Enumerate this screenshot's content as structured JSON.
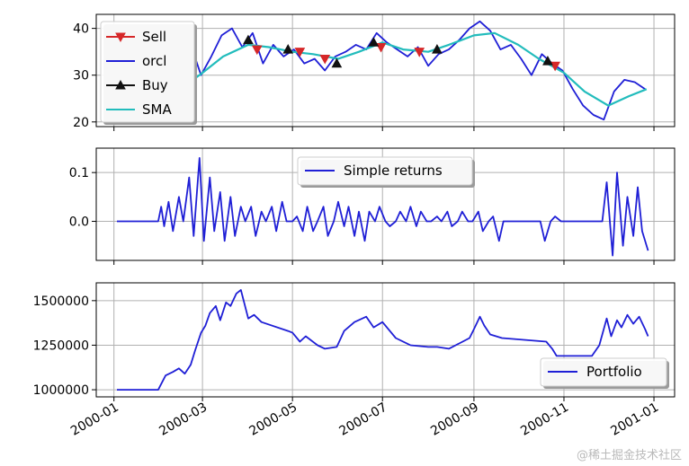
{
  "watermark": "@稀土掘金技术社区",
  "colors": {
    "sell": "#d62728",
    "orcl": "#1f1fd6",
    "buy": "#111111",
    "sma": "#22bcbc",
    "returns": "#1f1fd6",
    "portfolio": "#1f1fd6",
    "grid": "#b0b0b0"
  },
  "x_ticks": [
    "2000-01",
    "2000-03",
    "2000-05",
    "2000-07",
    "2000-09",
    "2000-11",
    "2001-01"
  ],
  "chart_data": [
    {
      "type": "line",
      "title": "",
      "ylim": [
        19,
        43
      ],
      "y_ticks": [
        20,
        30,
        40
      ],
      "grid": true,
      "legend": {
        "placement": "upper-left",
        "entries": [
          "Sell",
          "orcl",
          "Buy",
          "SMA"
        ]
      },
      "series": [
        {
          "name": "orcl",
          "x": [
            "2000-01-31",
            "2000-02-08",
            "2000-02-15",
            "2000-02-22",
            "2000-02-29",
            "2000-03-07",
            "2000-03-14",
            "2000-03-21",
            "2000-03-28",
            "2000-04-04",
            "2000-04-11",
            "2000-04-18",
            "2000-04-25",
            "2000-05-02",
            "2000-05-09",
            "2000-05-16",
            "2000-05-23",
            "2000-05-30",
            "2000-06-06",
            "2000-06-13",
            "2000-06-20",
            "2000-06-27",
            "2000-07-04",
            "2000-07-11",
            "2000-07-18",
            "2000-07-25",
            "2000-08-01",
            "2000-08-08",
            "2000-08-15",
            "2000-08-22",
            "2000-08-29",
            "2000-09-05",
            "2000-09-12",
            "2000-09-19",
            "2000-09-26",
            "2000-10-03",
            "2000-10-10",
            "2000-10-17",
            "2000-10-24",
            "2000-10-31",
            "2000-11-07",
            "2000-11-14",
            "2000-11-21",
            "2000-11-28",
            "2000-12-05",
            "2000-12-12",
            "2000-12-19",
            "2000-12-26"
          ],
          "values": [
            27.5,
            26.5,
            31.5,
            36.5,
            30.0,
            34.0,
            38.5,
            40.0,
            36.0,
            39.0,
            32.5,
            36.5,
            34.0,
            35.5,
            32.5,
            33.5,
            31.0,
            34.0,
            35.0,
            36.5,
            35.5,
            39.0,
            37.0,
            35.5,
            34.0,
            36.0,
            32.0,
            34.5,
            35.5,
            37.5,
            40.0,
            41.5,
            39.5,
            35.5,
            36.5,
            33.5,
            30.0,
            34.5,
            32.5,
            31.0,
            27.0,
            23.5,
            21.5,
            20.5,
            26.5,
            29.0,
            28.5,
            27.0
          ]
        },
        {
          "name": "SMA",
          "x": [
            "2000-02-15",
            "2000-03-01",
            "2000-03-15",
            "2000-04-01",
            "2000-04-15",
            "2000-05-01",
            "2000-05-15",
            "2000-06-01",
            "2000-06-15",
            "2000-07-01",
            "2000-07-15",
            "2000-08-01",
            "2000-08-15",
            "2000-09-01",
            "2000-09-15",
            "2000-10-01",
            "2000-10-15",
            "2000-11-01",
            "2000-11-15",
            "2000-12-01",
            "2000-12-15",
            "2000-12-27"
          ],
          "values": [
            27.0,
            30.5,
            34.0,
            36.5,
            36.0,
            35.0,
            34.5,
            33.5,
            35.0,
            37.0,
            35.5,
            35.0,
            36.5,
            38.5,
            39.0,
            36.5,
            33.5,
            30.5,
            26.5,
            23.5,
            25.5,
            27.0
          ]
        }
      ],
      "markers": {
        "Sell": {
          "x": [
            "2000-04-07",
            "2000-05-06",
            "2000-05-23",
            "2000-06-30",
            "2000-07-26",
            "2000-10-26"
          ],
          "values": [
            35.5,
            35.0,
            33.5,
            36.0,
            35.0,
            32.0
          ]
        },
        "Buy": {
          "x": [
            "2000-04-01",
            "2000-04-28",
            "2000-05-31",
            "2000-06-25",
            "2000-08-07",
            "2000-10-21"
          ],
          "values": [
            37.5,
            35.5,
            32.5,
            37.0,
            35.5,
            33.0
          ]
        }
      }
    },
    {
      "type": "line",
      "title": "",
      "ylim": [
        -0.08,
        0.15
      ],
      "y_ticks": [
        "0.1",
        "0.0"
      ],
      "grid": true,
      "legend": {
        "placement": "upper-center",
        "entries": [
          "Simple returns"
        ]
      },
      "series": [
        {
          "name": "Simple returns",
          "x": [
            "2000-01-03",
            "2000-01-31",
            "2000-02-02",
            "2000-02-04",
            "2000-02-07",
            "2000-02-10",
            "2000-02-14",
            "2000-02-17",
            "2000-02-21",
            "2000-02-24",
            "2000-02-28",
            "2000-03-02",
            "2000-03-06",
            "2000-03-09",
            "2000-03-13",
            "2000-03-16",
            "2000-03-20",
            "2000-03-23",
            "2000-03-27",
            "2000-03-30",
            "2000-04-03",
            "2000-04-06",
            "2000-04-10",
            "2000-04-13",
            "2000-04-17",
            "2000-04-20",
            "2000-04-24",
            "2000-04-27",
            "2000-05-01",
            "2000-05-04",
            "2000-05-08",
            "2000-05-11",
            "2000-05-15",
            "2000-05-18",
            "2000-05-22",
            "2000-05-25",
            "2000-05-29",
            "2000-06-01",
            "2000-06-05",
            "2000-06-08",
            "2000-06-12",
            "2000-06-15",
            "2000-06-19",
            "2000-06-22",
            "2000-06-26",
            "2000-06-29",
            "2000-07-03",
            "2000-07-06",
            "2000-07-10",
            "2000-07-13",
            "2000-07-17",
            "2000-07-20",
            "2000-07-24",
            "2000-07-27",
            "2000-07-31",
            "2000-08-03",
            "2000-08-07",
            "2000-08-10",
            "2000-08-14",
            "2000-08-17",
            "2000-08-21",
            "2000-08-24",
            "2000-08-28",
            "2000-08-31",
            "2000-09-04",
            "2000-09-07",
            "2000-09-11",
            "2000-09-14",
            "2000-09-18",
            "2000-09-21",
            "2000-09-25",
            "2000-10-02",
            "2000-10-16",
            "2000-10-19",
            "2000-10-23",
            "2000-10-26",
            "2000-10-30",
            "2000-11-27",
            "2000-11-30",
            "2000-12-04",
            "2000-12-07",
            "2000-12-11",
            "2000-12-14",
            "2000-12-18",
            "2000-12-21",
            "2000-12-24",
            "2000-12-28"
          ],
          "values": [
            0.0,
            0.0,
            0.03,
            -0.01,
            0.04,
            -0.02,
            0.05,
            0.0,
            0.09,
            -0.03,
            0.13,
            -0.04,
            0.09,
            -0.02,
            0.06,
            -0.04,
            0.05,
            -0.03,
            0.03,
            0.0,
            0.03,
            -0.03,
            0.02,
            0.0,
            0.03,
            -0.02,
            0.04,
            0.0,
            0.0,
            0.01,
            -0.02,
            0.03,
            -0.02,
            0.0,
            0.03,
            -0.03,
            0.0,
            0.04,
            -0.01,
            0.03,
            -0.03,
            0.02,
            -0.04,
            0.02,
            0.0,
            0.03,
            0.0,
            -0.01,
            0.0,
            0.02,
            0.0,
            0.03,
            -0.01,
            0.02,
            0.0,
            0.0,
            0.01,
            0.0,
            0.02,
            -0.01,
            0.0,
            0.02,
            0.0,
            0.0,
            0.02,
            -0.02,
            0.0,
            0.01,
            -0.04,
            0.0,
            0.0,
            0.0,
            0.0,
            -0.04,
            0.0,
            0.01,
            0.0,
            0.0,
            0.08,
            -0.07,
            0.1,
            -0.05,
            0.05,
            -0.03,
            0.07,
            -0.02,
            -0.06
          ]
        }
      ]
    },
    {
      "type": "line",
      "title": "",
      "ylim": [
        960000,
        1600000
      ],
      "y_ticks": [
        "1500000",
        "1250000",
        "1000000"
      ],
      "grid": true,
      "legend": {
        "placement": "lower-right",
        "entries": [
          "Portfolio"
        ]
      },
      "series": [
        {
          "name": "Portfolio",
          "x": [
            "2000-01-03",
            "2000-01-31",
            "2000-02-05",
            "2000-02-10",
            "2000-02-14",
            "2000-02-18",
            "2000-02-22",
            "2000-02-25",
            "2000-02-29",
            "2000-03-03",
            "2000-03-06",
            "2000-03-10",
            "2000-03-13",
            "2000-03-17",
            "2000-03-20",
            "2000-03-24",
            "2000-03-27",
            "2000-04-01",
            "2000-04-05",
            "2000-04-10",
            "2000-04-28",
            "2000-05-01",
            "2000-05-06",
            "2000-05-10",
            "2000-05-18",
            "2000-05-23",
            "2000-05-31",
            "2000-06-05",
            "2000-06-12",
            "2000-06-20",
            "2000-06-25",
            "2000-07-01",
            "2000-07-10",
            "2000-07-20",
            "2000-08-01",
            "2000-08-07",
            "2000-08-15",
            "2000-08-22",
            "2000-08-29",
            "2000-09-01",
            "2000-09-05",
            "2000-09-08",
            "2000-09-12",
            "2000-09-20",
            "2000-10-20",
            "2000-10-24",
            "2000-10-27",
            "2000-11-20",
            "2000-11-25",
            "2000-11-30",
            "2000-12-03",
            "2000-12-07",
            "2000-12-10",
            "2000-12-14",
            "2000-12-18",
            "2000-12-22",
            "2000-12-26",
            "2000-12-28"
          ],
          "values": [
            1000000,
            1000000,
            1080000,
            1100000,
            1120000,
            1090000,
            1140000,
            1220000,
            1320000,
            1360000,
            1430000,
            1470000,
            1390000,
            1490000,
            1470000,
            1540000,
            1560000,
            1400000,
            1420000,
            1380000,
            1330000,
            1320000,
            1270000,
            1300000,
            1250000,
            1230000,
            1240000,
            1330000,
            1380000,
            1410000,
            1350000,
            1380000,
            1290000,
            1250000,
            1240000,
            1240000,
            1230000,
            1260000,
            1290000,
            1340000,
            1410000,
            1360000,
            1310000,
            1290000,
            1270000,
            1230000,
            1190000,
            1190000,
            1250000,
            1400000,
            1300000,
            1390000,
            1350000,
            1420000,
            1370000,
            1410000,
            1340000,
            1300000
          ]
        }
      ]
    }
  ]
}
